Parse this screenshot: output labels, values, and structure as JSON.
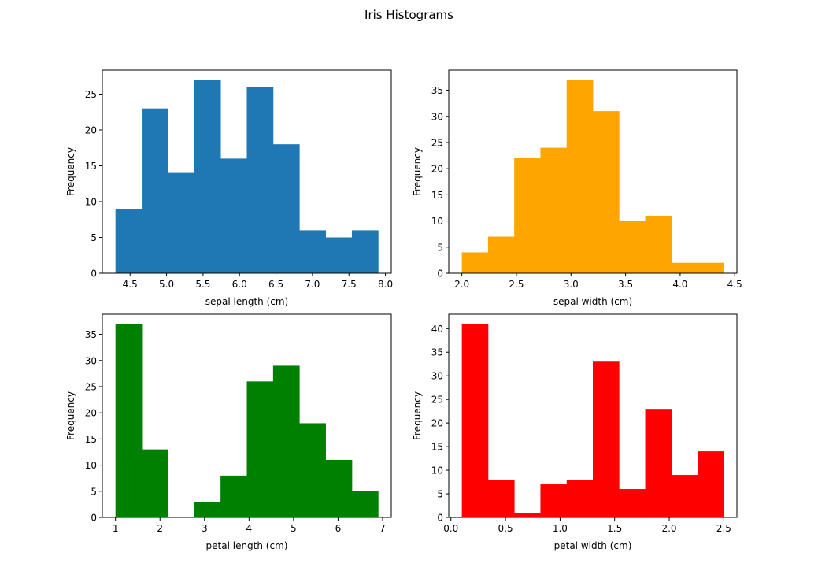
{
  "figure_title": "Iris Histograms",
  "chart_data": [
    {
      "type": "bar",
      "id": "sepal-length",
      "xlabel": "sepal length (cm)",
      "ylabel": "Frequency",
      "color": "#1f77b4",
      "bin_edges": [
        4.3,
        4.66,
        5.02,
        5.38,
        5.74,
        6.1,
        6.46,
        6.82,
        7.18,
        7.54,
        7.9
      ],
      "counts": [
        9,
        23,
        14,
        27,
        16,
        26,
        18,
        6,
        5,
        6
      ],
      "xlim": [
        4.12,
        8.08
      ],
      "ylim": [
        0,
        28.35
      ],
      "xticks": [
        4.5,
        5.0,
        5.5,
        6.0,
        6.5,
        7.0,
        7.5,
        8.0
      ],
      "xticklabels": [
        "4.5",
        "5.0",
        "5.5",
        "6.0",
        "6.5",
        "7.0",
        "7.5",
        "8.0"
      ],
      "yticks": [
        0,
        5,
        10,
        15,
        20,
        25
      ],
      "yticklabels": [
        "0",
        "5",
        "10",
        "15",
        "20",
        "25"
      ]
    },
    {
      "type": "bar",
      "id": "sepal-width",
      "xlabel": "sepal width (cm)",
      "ylabel": "Frequency",
      "color": "#ffa500",
      "bin_edges": [
        2.0,
        2.24,
        2.48,
        2.72,
        2.96,
        3.2,
        3.44,
        3.68,
        3.92,
        4.16,
        4.4
      ],
      "counts": [
        4,
        7,
        22,
        24,
        37,
        31,
        10,
        11,
        2,
        2
      ],
      "xlim": [
        1.88,
        4.52
      ],
      "ylim": [
        0,
        38.85
      ],
      "xticks": [
        2.0,
        2.5,
        3.0,
        3.5,
        4.0,
        4.5
      ],
      "xticklabels": [
        "2.0",
        "2.5",
        "3.0",
        "3.5",
        "4.0",
        "4.5"
      ],
      "yticks": [
        0,
        5,
        10,
        15,
        20,
        25,
        30,
        35
      ],
      "yticklabels": [
        "0",
        "5",
        "10",
        "15",
        "20",
        "25",
        "30",
        "35"
      ]
    },
    {
      "type": "bar",
      "id": "petal-length",
      "xlabel": "petal length (cm)",
      "ylabel": "Frequency",
      "color": "#008000",
      "bin_edges": [
        1.0,
        1.59,
        2.18,
        2.77,
        3.36,
        3.95,
        4.54,
        5.13,
        5.72,
        6.31,
        6.9
      ],
      "counts": [
        37,
        13,
        0,
        3,
        8,
        26,
        29,
        18,
        11,
        5
      ],
      "xlim": [
        0.705,
        7.195
      ],
      "ylim": [
        0,
        38.85
      ],
      "xticks": [
        1,
        2,
        3,
        4,
        5,
        6,
        7
      ],
      "xticklabels": [
        "1",
        "2",
        "3",
        "4",
        "5",
        "6",
        "7"
      ],
      "yticks": [
        0,
        5,
        10,
        15,
        20,
        25,
        30,
        35
      ],
      "yticklabels": [
        "0",
        "5",
        "10",
        "15",
        "20",
        "25",
        "30",
        "35"
      ]
    },
    {
      "type": "bar",
      "id": "petal-width",
      "xlabel": "petal width (cm)",
      "ylabel": "Frequency",
      "color": "#ff0000",
      "bin_edges": [
        0.1,
        0.34,
        0.58,
        0.82,
        1.06,
        1.3,
        1.54,
        1.78,
        2.02,
        2.26,
        2.5
      ],
      "counts": [
        41,
        8,
        1,
        7,
        8,
        33,
        6,
        23,
        9,
        14
      ],
      "xlim": [
        -0.02,
        2.62
      ],
      "ylim": [
        0,
        43.05
      ],
      "xticks": [
        0.0,
        0.5,
        1.0,
        1.5,
        2.0,
        2.5
      ],
      "xticklabels": [
        "0.0",
        "0.5",
        "1.0",
        "1.5",
        "2.0",
        "2.5"
      ],
      "yticks": [
        0,
        5,
        10,
        15,
        20,
        25,
        30,
        35,
        40
      ],
      "yticklabels": [
        "0",
        "5",
        "10",
        "15",
        "20",
        "25",
        "30",
        "35",
        "40"
      ]
    }
  ]
}
